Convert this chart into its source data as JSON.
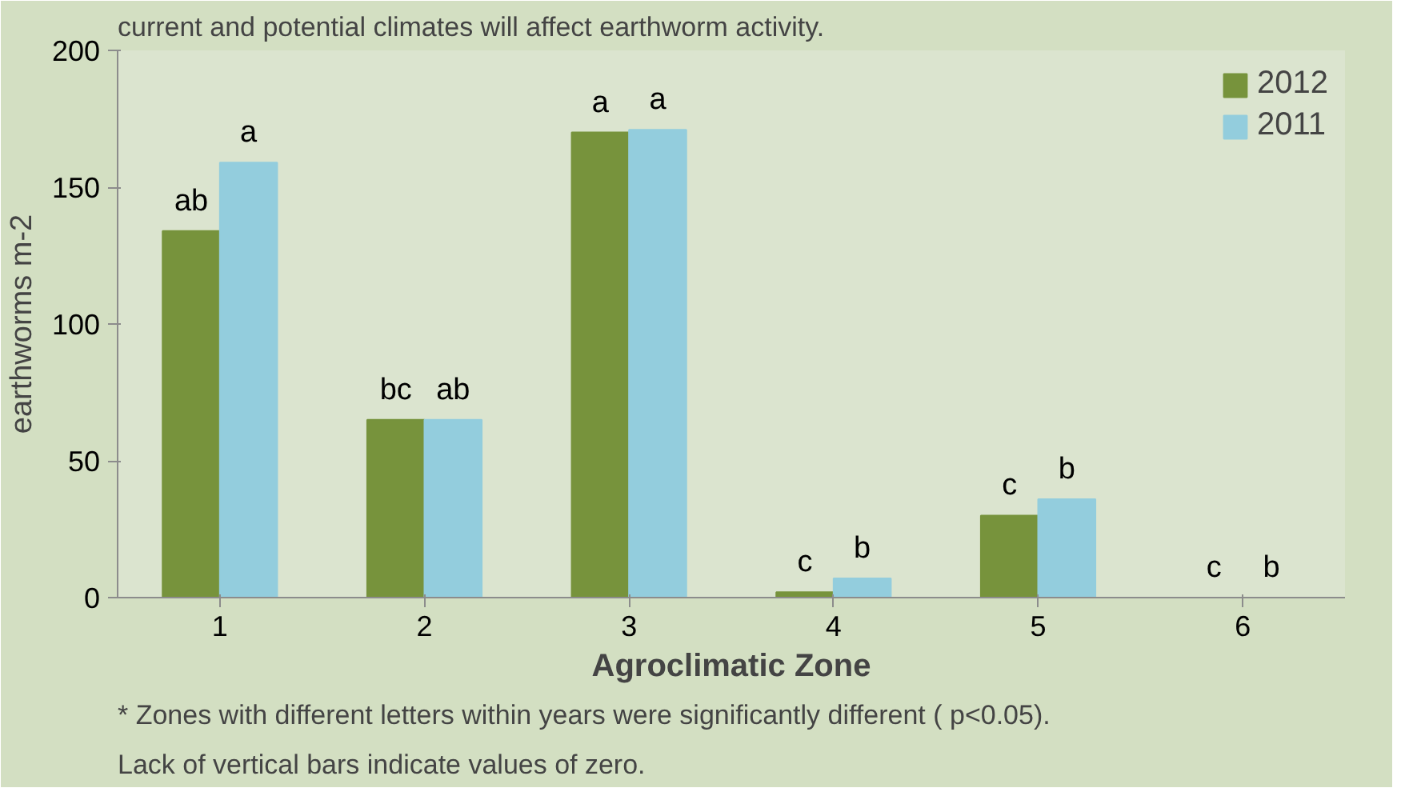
{
  "chart_data": {
    "type": "bar",
    "title": "current and potential climates will affect earthworm activity.",
    "xlabel": "Agroclimatic Zone",
    "ylabel": "earthworms m-2",
    "categories": [
      "1",
      "2",
      "3",
      "4",
      "5",
      "6"
    ],
    "series": [
      {
        "name": "2012",
        "color": "#77933c",
        "values": [
          134,
          65,
          170,
          2,
          30,
          0
        ],
        "value_labels": [
          "ab",
          "bc",
          "a",
          "c",
          "c",
          "c"
        ]
      },
      {
        "name": "2011",
        "color": "#93cddd",
        "values": [
          159,
          65,
          171,
          7,
          36,
          0
        ],
        "value_labels": [
          "a",
          "ab",
          "a",
          "b",
          "b",
          "b"
        ]
      }
    ],
    "ylim": [
      0,
      200
    ],
    "yticks": [
      0,
      50,
      100,
      150,
      200
    ],
    "grid": false,
    "legend": "top right",
    "annotations": [
      "* Zones with different letters within years were significantly different ( p<0.05).  Lack of vertical bars indicate values of zero."
    ]
  }
}
